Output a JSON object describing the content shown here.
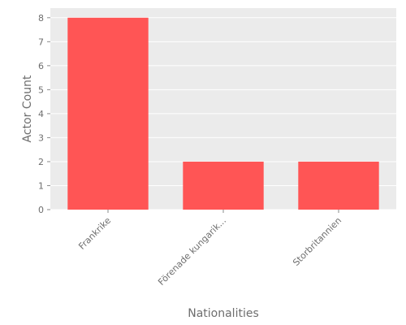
{
  "chart_data": {
    "type": "bar",
    "categories": [
      "Frankrike",
      "Förenade kungarik...",
      "Storbritannien"
    ],
    "values": [
      8,
      2,
      2
    ],
    "title": "",
    "xlabel": "Nationalities",
    "ylabel": "Actor Count",
    "ylim": [
      0,
      8.4
    ],
    "yticks": [
      0,
      1,
      2,
      3,
      4,
      5,
      6,
      7,
      8
    ],
    "grid": true,
    "legend": "none",
    "colors": {
      "bar": "#ff5555",
      "plot_background": "#ebebeb",
      "grid": "#ffffff",
      "text": "#6e6e6e"
    }
  }
}
